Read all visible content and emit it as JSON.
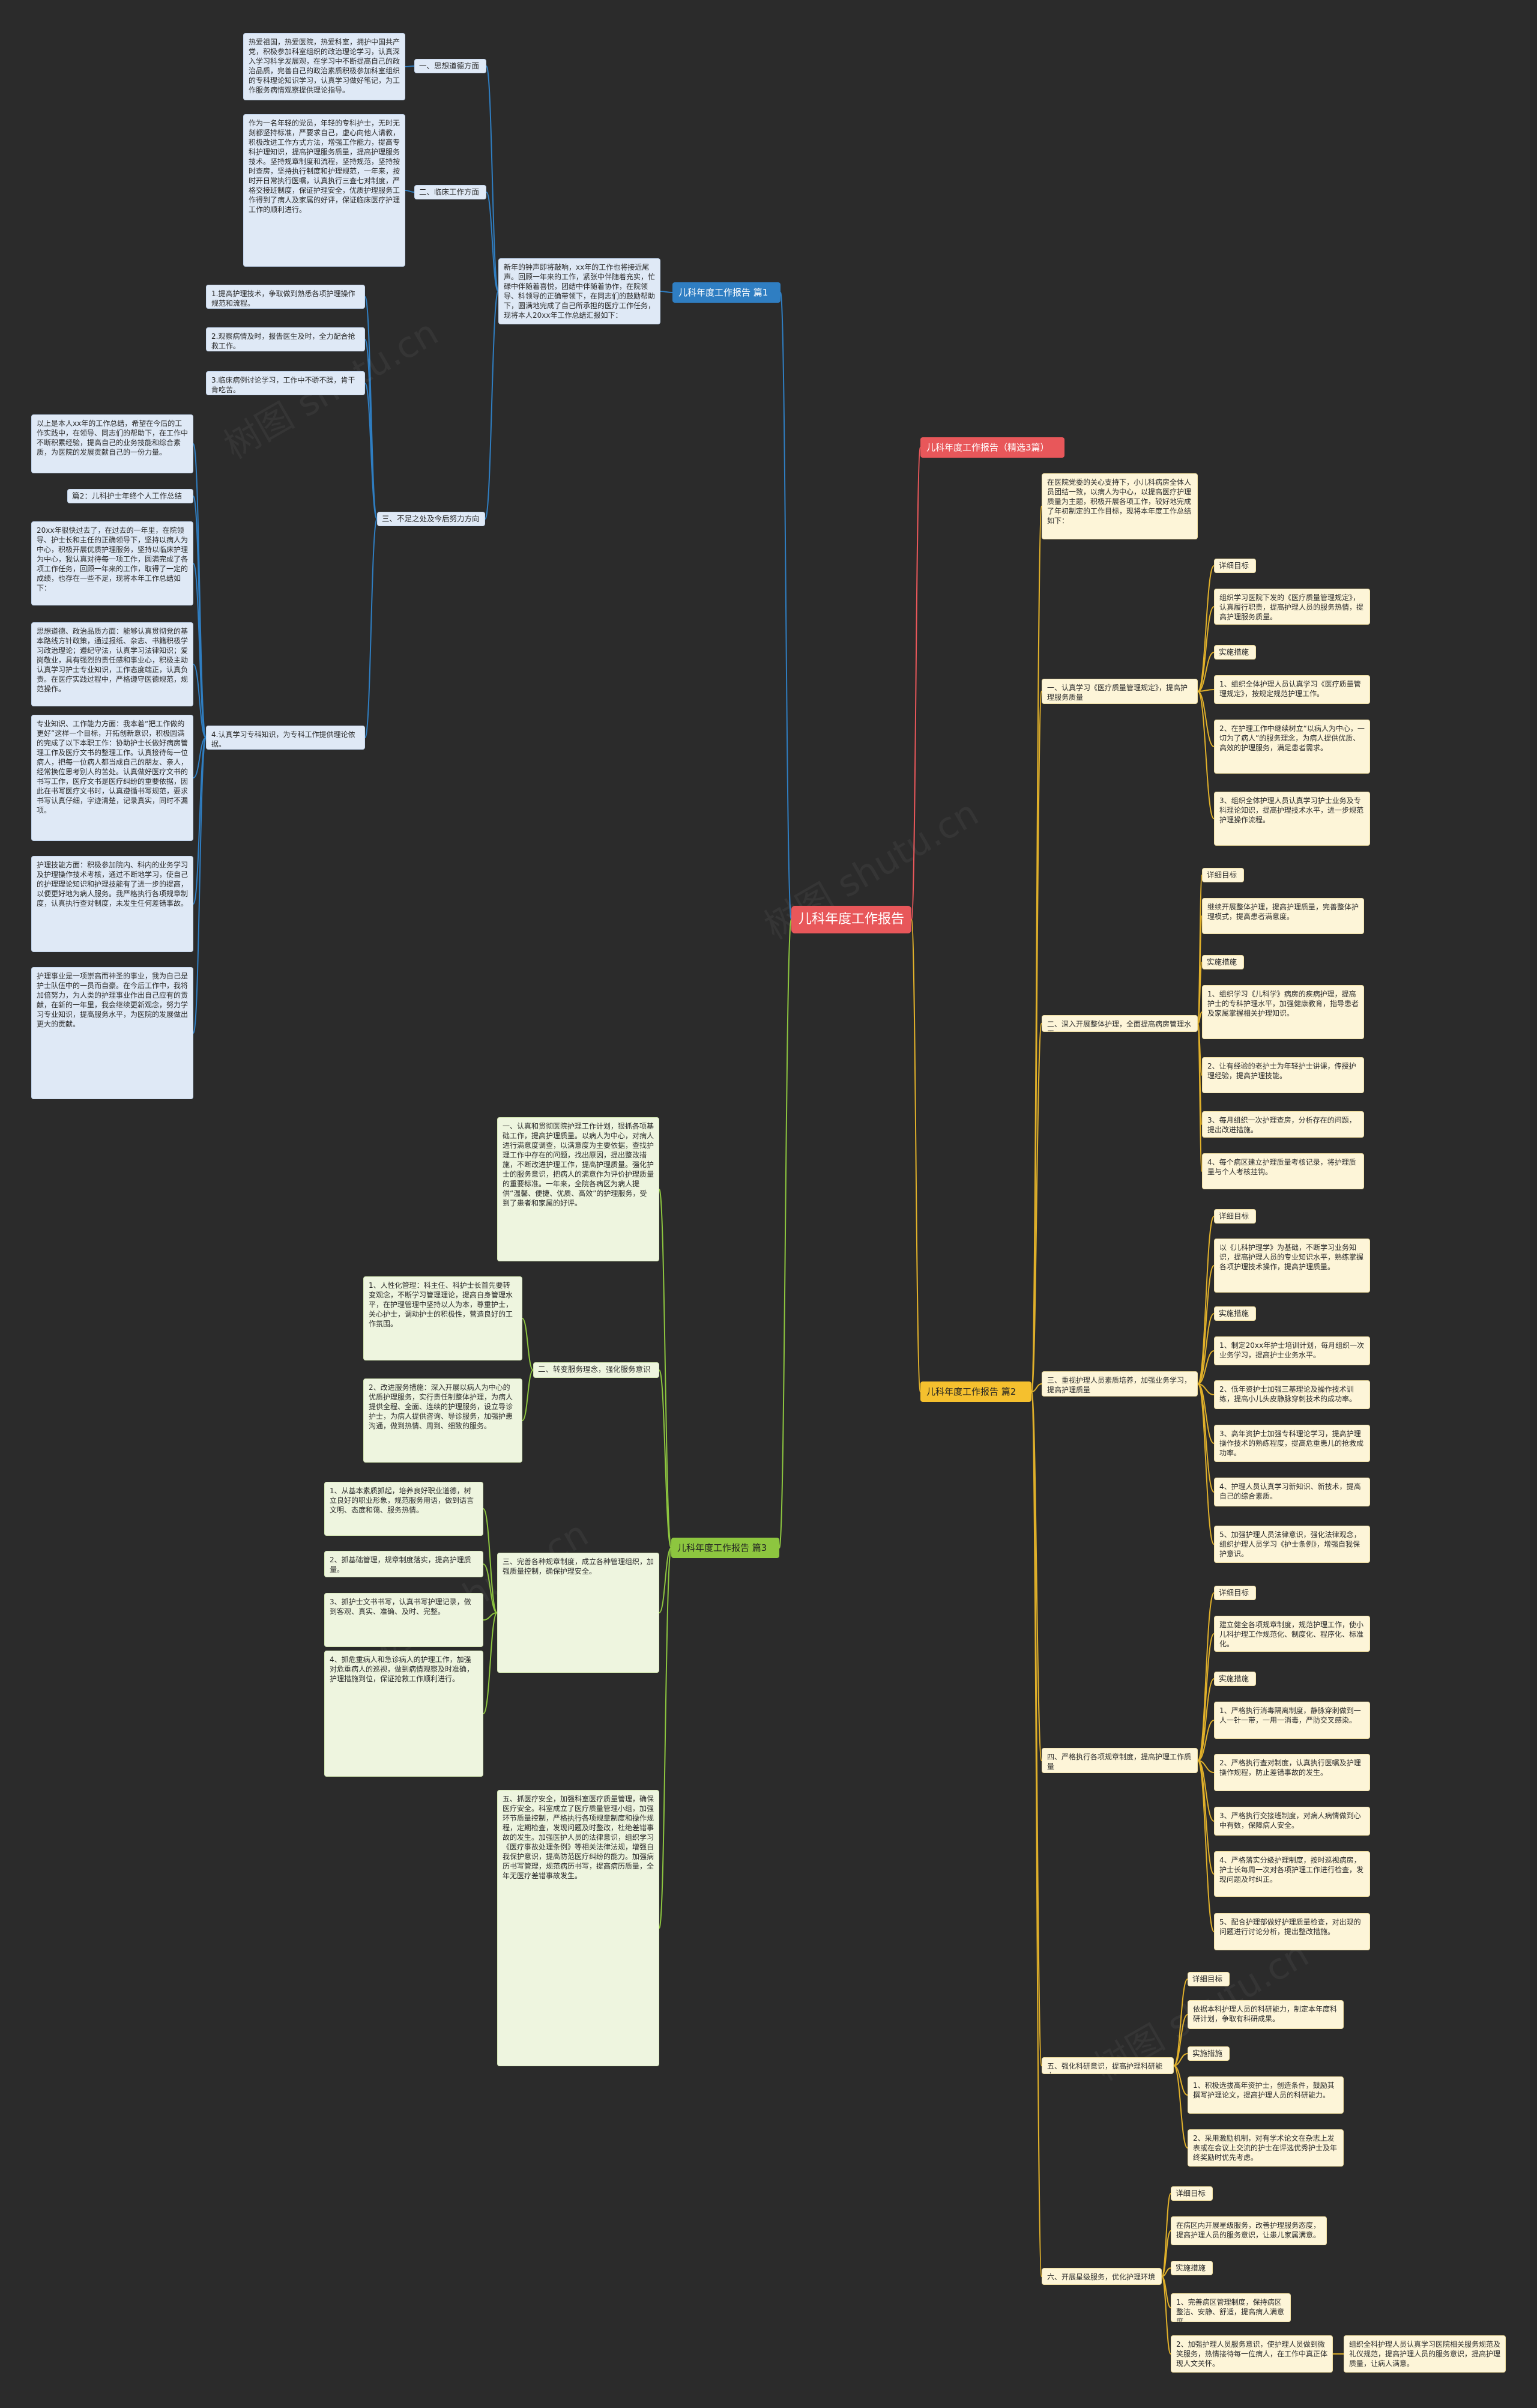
{
  "root": "儿科年度工作报告",
  "branch1": {
    "title": "儿科年度工作报告 篇1",
    "intro": "新年的钟声即将敲响，xx年的工作也将接近尾声。回顾一年来的工作，紧张中伴随着充实，忙碌中伴随着喜悦，团结中伴随着协作，在院领导、科领导的正确带领下，在同志们的鼓励帮助下，圆满地完成了自己所承担的医疗工作任务，现将本人20xx年工作总结汇报如下：",
    "sec1": "一、思想道德方面",
    "sec1_text": "热爱祖国，热爱医院，热爱科室，拥护中国共产党，积极参加科室组织的政治理论学习，认真深入学习科学发展观，在学习中不断提高自己的政治品质，完善自己的政治素质积极参加科室组织的专科理论知识学习，认真学习做好笔记，为工作服务病情观察提供理论指导。",
    "sec2": "二、临床工作方面",
    "sec2_text": "作为一名年轻的党员，年轻的专科护士，无时无刻都坚持标准，严要求自己，虚心向他人请教，积极改进工作方式方法，增强工作能力，提高专科护理知识，提高护理服务质量，提高护理服务技术。坚持规章制度和流程，坚持规范，坚持按时查房，坚持执行制度和护理规范，一年来，按时开日常执行医嘱，认真执行三查七对制度，严格交接班制度，保证护理安全，优质护理服务工作得到了病人及家属的好评，保证临床医疗护理工作的顺利进行。",
    "sec3": "三、不足之处及今后努力方向",
    "sec3_items": [
      "1.提高护理技术，争取做到熟悉各项护理操作规范和流程。",
      "2.观察病情及时，报告医生及时，全力配合抢救工作。",
      "3.临床病例讨论学习，工作中不骄不躁，肯干肯吃苦。",
      "4.认真学习专科知识，为专科工作提供理论依据。"
    ],
    "sec3_summary": "以上是本人xx年的工作总结，希望在今后的工作实践中，在领导、同志们的帮助下，在工作中不断积累经验，提高自己的业务技能和综合素质，为医院的发展贡献自己的一份力量。",
    "sub_title": "篇2：儿科护士年终个人工作总结",
    "sub_paras": [
      "20xx年很快过去了，在过去的一年里，在院领导、护士长和主任的正确领导下，坚持以病人为中心，积极开展优质护理服务，坚持以临床护理为中心，我认真对待每一项工作，圆满完成了各项工作任务，回顾一年来的工作，取得了一定的成绩，也存在一些不足，现将本年工作总结如下：",
      "思想道德、政治品质方面：能够认真贯彻党的基本路线方针政策，通过报纸、杂志、书籍积极学习政治理论；遵纪守法，认真学习法律知识；爱岗敬业，具有强烈的责任感和事业心，积极主动认真学习护士专业知识，工作态度端正，认真负责。在医疗实践过程中，严格遵守医德规范，规范操作。",
      "专业知识、工作能力方面：我本着“把工作做的更好”这样一个目标，开拓创新意识，积极圆满的完成了以下本职工作：协助护士长做好病房管理工作及医疗文书的整理工作。认真接待每一位病人，把每一位病人都当成自己的朋友、亲人，经常换位思考别人的苦处。认真做好医疗文书的书写工作，医疗文书是医疗纠纷的重要依据，因此在书写医疗文书时，认真遵循书写规范，要求书写认真仔细，字迹清楚，记录真实，同时不漏项。",
      "护理技能方面：积极参加院内、科内的业务学习及护理操作技术考核，通过不断地学习，使自己的护理理论知识和护理技能有了进一步的提高，以便更好地为病人服务。我严格执行各项规章制度，认真执行查对制度，未发生任何差错事故。",
      "护理事业是一项崇高而神圣的事业，我为自己是护士队伍中的一员而自豪。在今后工作中，我将加倍努力，为人类的护理事业作出自己应有的贡献，在新的一年里，我会继续更新观念，努力学习专业知识，提高服务水平，为医院的发展做出更大的贡献。"
    ]
  },
  "branch4": {
    "title": "儿科年度工作报告（精选3篇）"
  },
  "branch2": {
    "title": "儿科年度工作报告 篇2",
    "intro": "在医院党委的关心支持下，小儿科病房全体人员团结一致，以病人为中心，以提高医疗护理质量为主题，积极开展各项工作，较好地完成了年初制定的工作目标，现将本年度工作总结如下：",
    "s1": "一、认真学习《医疗质量管理规定》，提高护理服务质量",
    "s1_target_label": "详细目标",
    "s1_target": "组织学习医院下发的《医疗质量管理规定》，认真履行职责，提高护理人员的服务热情，提高护理服务质量。",
    "s1_measure_label": "实施措施",
    "s1_measures": [
      "1、组织全体护理人员认真学习《医疗质量管理规定》，按规定规范护理工作。",
      "2、在护理工作中继续树立“以病人为中心，一切为了病人”的服务理念，为病人提供优质、高效的护理服务，满足患者需求。",
      "3、组织全体护理人员认真学习护士业务及专科理论知识，提高护理技术水平，进一步规范护理操作流程。"
    ],
    "s2": "二、深入开展整体护理，全面提高病房管理水平",
    "s2_target_label": "详细目标",
    "s2_target": "继续开展整体护理，提高护理质量，完善整体护理模式，提高患者满意度。",
    "s2_measure_label": "实施措施",
    "s2_measures": [
      "1、组织学习《儿科学》病房的疾病护理，提高护士的专科护理水平，加强健康教育，指导患者及家属掌握相关护理知识。",
      "2、让有经验的老护士为年轻护士讲课，传授护理经验，提高护理技能。",
      "3、每月组织一次护理查房，分析存在的问题，提出改进措施。",
      "4、每个病区建立护理质量考核记录，将护理质量与个人考核挂钩。"
    ],
    "s3": "三、重视护理人员素质培养，加强业务学习，提高护理质量",
    "s3_target_label": "详细目标",
    "s3_target": "以《儿科护理学》为基础，不断学习业务知识，提高护理人员的专业知识水平，熟练掌握各项护理技术操作，提高护理质量。",
    "s3_measure_label": "实施措施",
    "s3_measures": [
      "1、制定20xx年护士培训计划，每月组织一次业务学习，提高护士业务水平。",
      "2、低年资护士加强三基理论及操作技术训练，提高小儿头皮静脉穿刺技术的成功率。",
      "3、高年资护士加强专科理论学习，提高护理操作技术的熟练程度，提高危重患儿的抢救成功率。",
      "4、护理人员认真学习新知识、新技术，提高自己的综合素质。",
      "5、加强护理人员法律意识，强化法律观念，组织护理人员学习《护士条例》，增强自我保护意识。"
    ],
    "s4": "四、严格执行各项规章制度，提高护理工作质量",
    "s4_target_label": "详细目标",
    "s4_target": "建立健全各项规章制度，规范护理工作，使小儿科护理工作规范化、制度化、程序化、标准化。",
    "s4_measure_label": "实施措施",
    "s4_measures": [
      "1、严格执行消毒隔离制度，静脉穿刺做到一人一针一带，一用一消毒，严防交叉感染。",
      "2、严格执行查对制度，认真执行医嘱及护理操作规程，防止差错事故的发生。",
      "3、严格执行交接班制度，对病人病情做到心中有数，保障病人安全。",
      "4、严格落实分级护理制度，按时巡视病房，护士长每周一次对各项护理工作进行检查，发现问题及时纠正。",
      "5、配合护理部做好护理质量检查，对出现的问题进行讨论分析，提出整改措施。"
    ],
    "s5": "五、强化科研意识，提高护理科研能力",
    "s5_target_label": "详细目标",
    "s5_target": "依据本科护理人员的科研能力，制定本年度科研计划，争取有科研成果。",
    "s5_measure_label": "实施措施",
    "s5_measures": [
      "1、积极选拔高年资护士，创造条件，鼓励其撰写护理论文，提高护理人员的科研能力。",
      "2、采用激励机制，对有学术论文在杂志上发表或在会议上交流的护士在评选优秀护士及年终奖励时优先考虑。"
    ],
    "s6": "六、开展星级服务，优化护理环境",
    "s6_target_label": "详细目标",
    "s6_target": "在病区内开展星级服务，改善护理服务态度，提高护理人员的服务意识，让患儿家属满意。",
    "s6_measure_label": "实施措施",
    "s6_measures": [
      "1、完善病区管理制度，保持病区整洁、安静、舒适，提高病人满意度。",
      "2、加强护理人员服务意识，使护理人员做到微笑服务，热情接待每一位病人，在工作中真正体现人文关怀。"
    ],
    "s6_extra": "组织全科护理人员认真学习医院相关服务规范及礼仪规范，提高护理人员的服务意识，提高护理质量，让病人满意。"
  },
  "branch3": {
    "title": "儿科年度工作报告 篇3",
    "p1": "一、认真和贯彻医院护理工作计划，狠抓各项基础工作，提高护理质量。以病人为中心，对病人进行满意度调查，以满意度为主要依据，查找护理工作中存在的问题，找出原因，提出整改措施，不断改进护理工作，提高护理质量。强化护士的服务意识，把病人的满意作为评价护理质量的重要标准。一年来，全院各病区为病人提供“温馨、便捷、优质、高效”的护理服务，受到了患者和家属的好评。",
    "s2": "二、转变服务理念，强化服务意识",
    "s2_items": [
      "1、人性化管理：科主任、科护士长首先要转变观念，不断学习管理理论，提高自身管理水平，在护理管理中坚持以人为本，尊重护士，关心护士，调动护士的积极性，营造良好的工作氛围。",
      "2、改进服务措施：深入开展以病人为中心的优质护理服务，实行责任制整体护理，为病人提供全程、全面、连续的护理服务，设立导诊护士，为病人提供咨询、导诊服务，加强护患沟通，做到热情、周到、细致的服务。"
    ],
    "s3_items": [
      "1、从基本素质抓起，培养良好职业道德，树立良好的职业形象，规范服务用语，做到语言文明、态度和蔼、服务热情。",
      "2、抓基础管理，规章制度落实，提高护理质量。",
      "3、抓护士文书书写，认真书写护理记录，做到客观、真实、准确、及时、完整。",
      "4、抓危重病人和急诊病人的护理工作，加强对危重病人的巡视，做到病情观察及时准确，护理措施到位，保证抢救工作顺利进行。"
    ],
    "s3": "三、完善各种规章制度，成立各种管理组织，加强质量控制，确保护理安全。",
    "s4": "五、抓医疗安全，加强科室医疗质量管理，确保医疗安全。科室成立了医疗质量管理小组，加强环节质量控制，严格执行各项规章制度和操作规程，定期检查，发现问题及时整改，杜绝差错事故的发生。加强医护人员的法律意识，组织学习《医疗事故处理条例》等相关法律法规，增强自我保护意识，提高防范医疗纠纷的能力。加强病历书写管理，规范病历书写，提高病历质量，全年无医疗差错事故发生。"
  }
}
